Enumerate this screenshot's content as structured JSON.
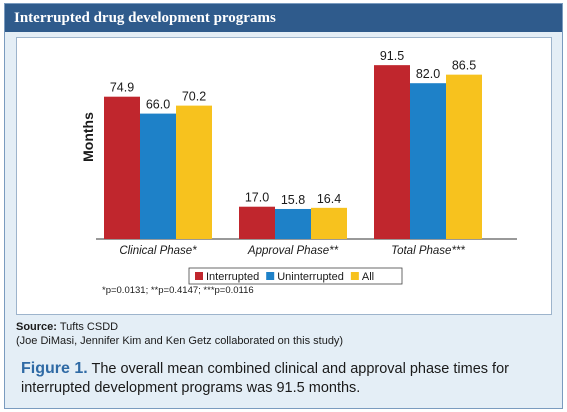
{
  "header": {
    "title": "Interrupted drug development programs"
  },
  "chart_data": {
    "type": "bar",
    "ylabel": "Months",
    "xlabel": "",
    "ylim": [
      0,
      100
    ],
    "grid": false,
    "legend_position": "bottom",
    "categories": [
      "Clinical Phase*",
      "Approval Phase**",
      "Total Phase***"
    ],
    "series": [
      {
        "name": "Interrupted",
        "color": "#c0262d",
        "values": [
          74.9,
          17.0,
          91.5
        ],
        "labels": [
          "74.9",
          "17.0",
          "91.5"
        ]
      },
      {
        "name": "Uninterrupted",
        "color": "#1e81c8",
        "values": [
          66.0,
          15.8,
          82.0
        ],
        "labels": [
          "66.0",
          "15.8",
          "82.0"
        ]
      },
      {
        "name": "All",
        "color": "#f7c21e",
        "values": [
          70.2,
          16.4,
          86.5
        ],
        "labels": [
          "70.2",
          "16.4",
          "86.5"
        ]
      }
    ]
  },
  "footnote": "*p=0.0131; **p=0.4147; ***p=0.0116",
  "source": {
    "label": "Source:",
    "text": "Tufts CSDD",
    "credit": "(Joe DiMasi, Jennifer Kim and Ken Getz collaborated on this study)"
  },
  "caption": {
    "label": "Figure 1.",
    "text": "The overall mean combined clinical and approval phase times for interrupted development programs was 91.5 months."
  }
}
